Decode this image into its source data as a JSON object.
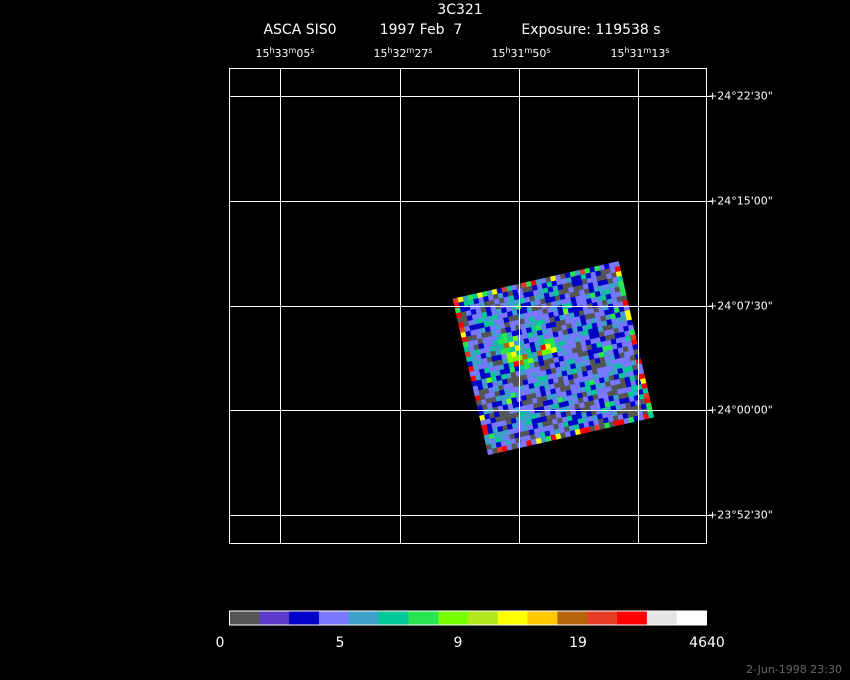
{
  "header": {
    "title": "3C321",
    "instrument": "ASCA SIS0",
    "date": "1997 Feb  7",
    "exposure": "Exposure: 119538 s"
  },
  "ra_labels": [
    [
      "15",
      "h",
      "33",
      "m",
      "05",
      "s"
    ],
    [
      "15",
      "h",
      "32",
      "m",
      "27",
      "s"
    ],
    [
      "15",
      "h",
      "31",
      "m",
      "50",
      "s"
    ],
    [
      "15",
      "h",
      "31",
      "m",
      "13",
      "s"
    ]
  ],
  "dec_labels": [
    "+24°22'30\"",
    "+24°15'00\"",
    "+24°07'30\"",
    "+24°00'00\"",
    "+23°52'30\""
  ],
  "colorbar": {
    "colors": [
      "#555555",
      "#5a3cc8",
      "#0000c8",
      "#7878ff",
      "#3ca0c8",
      "#00c896",
      "#28e650",
      "#78ff00",
      "#b4e61e",
      "#ffff00",
      "#ffc800",
      "#b4640a",
      "#e63c28",
      "#ff0000",
      "#e6e6e6",
      "#ffffff"
    ],
    "labels": [
      "0",
      "5",
      "9",
      "19",
      "4640"
    ]
  },
  "timestamp": "2-Jun-1998 23:30"
}
